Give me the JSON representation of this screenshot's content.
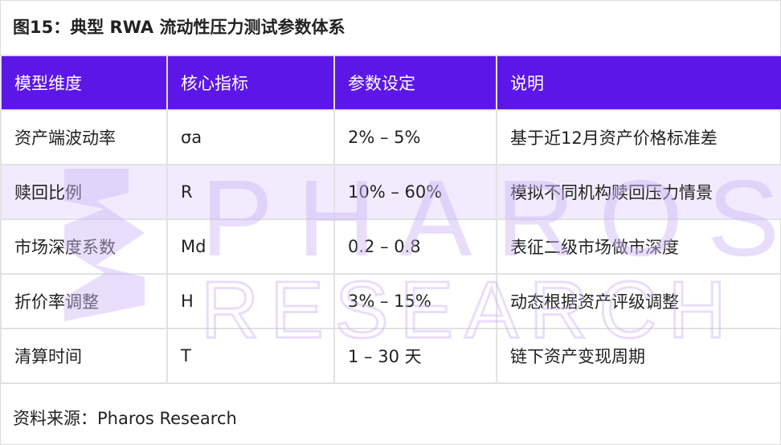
{
  "title": "图15：典型 RWA 流动性压力测试参数体系",
  "table": {
    "headers": [
      "模型维度",
      "核心指标",
      "参数设定",
      "说明"
    ],
    "rows": [
      [
        "资产端波动率",
        "σa",
        "2% – 5%",
        "基于近12月资产价格标准差"
      ],
      [
        "赎回比例",
        "R",
        "10% – 60%",
        "模拟不同机构赎回压力情景"
      ],
      [
        "市场深度系数",
        "Md",
        "0.2 – 0.8",
        "表征二级市场做市深度"
      ],
      [
        "折价率调整",
        "H",
        "3% – 15%",
        "动态根据资产评级调整"
      ],
      [
        "清算时间",
        "T",
        "1 – 30 天",
        "链下资产变现周期"
      ]
    ]
  },
  "footer": "资料来源：Pharos Research",
  "watermark": {
    "line1": "PHAROS",
    "line2": "RESEARCH"
  },
  "colors": {
    "header_bg": "#5c17e8",
    "highlight_row": "#f1ebfd",
    "watermark": "#e4d9fb"
  }
}
